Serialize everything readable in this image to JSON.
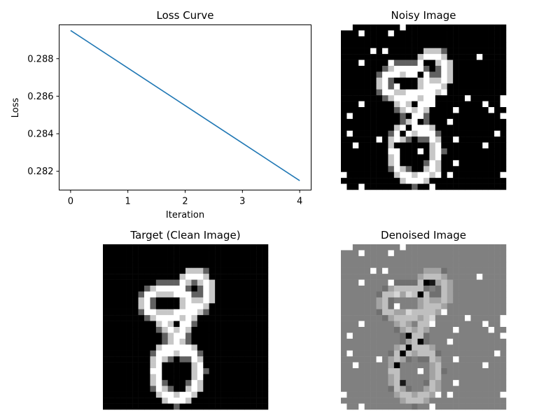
{
  "chart_data": [
    {
      "type": "line",
      "title": "Loss Curve",
      "xlabel": "Iteration",
      "ylabel": "Loss",
      "x": [
        0,
        1,
        2,
        3,
        4
      ],
      "series": [
        {
          "values": [
            0.2895,
            0.2875,
            0.2855,
            0.2835,
            0.2815
          ],
          "color": "#1f77b4"
        }
      ],
      "xlim": [
        -0.2,
        4.2
      ],
      "ylim": [
        0.281,
        0.2898
      ],
      "xticks": [
        "0",
        "1",
        "2",
        "3",
        "4"
      ],
      "yticks": [
        "0.282",
        "0.284",
        "0.286",
        "0.288"
      ],
      "grid": false
    },
    {
      "type": "heatmap",
      "title": "Noisy Image",
      "colormap": "gray",
      "grid_size": 28,
      "axes": "off"
    },
    {
      "type": "heatmap",
      "title": "Target (Clean Image)",
      "colormap": "gray",
      "grid_size": 28,
      "axes": "off"
    },
    {
      "type": "heatmap",
      "title": "Denoised Image",
      "colormap": "gray",
      "grid_size": 28,
      "axes": "off"
    }
  ]
}
